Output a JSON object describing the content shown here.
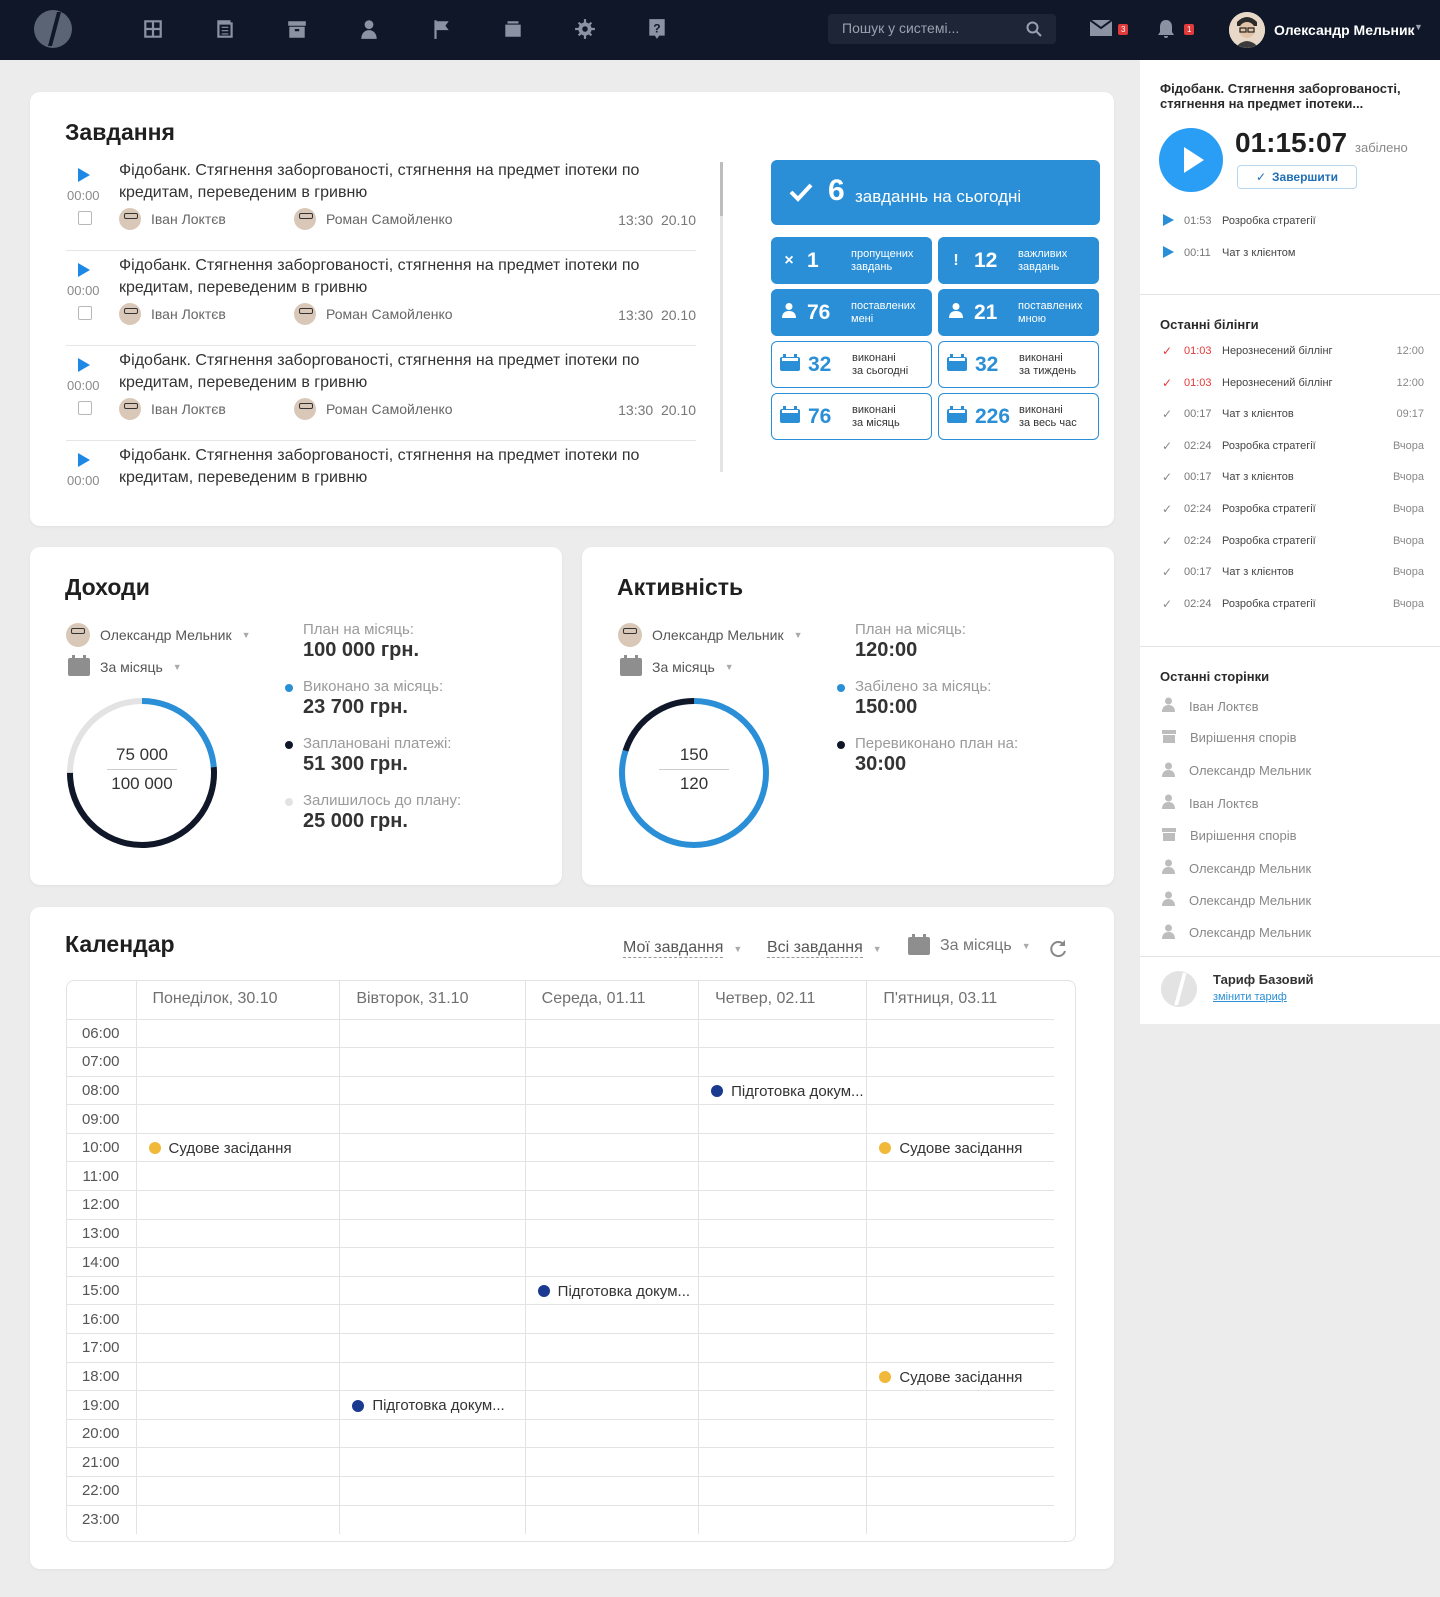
{
  "header": {
    "search_placeholder": "Пошук у системі...",
    "mail_count": "3",
    "notif_count": "1",
    "user_name": "Олександр Мельник",
    "nav_icons": [
      "dashboard-icon",
      "documents-icon",
      "archive-icon",
      "user-icon",
      "flag-icon",
      "wallet-icon",
      "settings-icon",
      "help-icon"
    ]
  },
  "tasks": {
    "title": "Завдання",
    "items": [
      {
        "time": "00:00",
        "title": "Фідобанк. Стягнення заборгованості, стягнення на предмет іпотеки по кредитам, переведеним в гривню",
        "author": "Іван Локтєв",
        "assignee": "Роман Самойленко",
        "hour": "13:30",
        "date": "20.10"
      },
      {
        "time": "00:00",
        "title": "Фідобанк. Стягнення заборгованості, стягнення на предмет іпотеки по кредитам, переведеним в гривню",
        "author": "Іван Локтєв",
        "assignee": "Роман Самойленко",
        "hour": "13:30",
        "date": "20.10"
      },
      {
        "time": "00:00",
        "title": "Фідобанк. Стягнення заборгованості, стягнення на предмет іпотеки по кредитам, переведеним в гривню",
        "author": "Іван Локтєв",
        "assignee": "Роман Самойленко",
        "hour": "13:30",
        "date": "20.10"
      },
      {
        "time": "00:00",
        "title": "Фідобанк. Стягнення заборгованості, стягнення на предмет іпотеки по кредитам, переведеним в гривню"
      }
    ],
    "today_count": "6",
    "today_label": "завданнь на сьогодні",
    "stats": [
      {
        "icon": "×",
        "num": "1",
        "l1": "пропущених",
        "l2": "завдань",
        "style": "filled"
      },
      {
        "icon": "!",
        "num": "12",
        "l1": "важливих",
        "l2": "завдань",
        "style": "filled"
      },
      {
        "icon": "user",
        "num": "76",
        "l1": "поставлених",
        "l2": "мені",
        "style": "filled"
      },
      {
        "icon": "user",
        "num": "21",
        "l1": "поставлених",
        "l2": "мною",
        "style": "filled"
      },
      {
        "icon": "cal",
        "num": "32",
        "l1": "виконані",
        "l2": "за сьогодні",
        "style": "outline"
      },
      {
        "icon": "cal",
        "num": "32",
        "l1": "виконані",
        "l2": "за тиждень",
        "style": "outline"
      },
      {
        "icon": "cal",
        "num": "76",
        "l1": "виконані",
        "l2": "за місяць",
        "style": "outline"
      },
      {
        "icon": "cal",
        "num": "226",
        "l1": "виконані",
        "l2": "за весь час",
        "style": "outline"
      }
    ]
  },
  "income": {
    "title": "Доходи",
    "user": "Олександр Мельник",
    "period": "За місяць",
    "ring_top": "75 000",
    "ring_bottom": "100 000",
    "done_fraction": 0.237,
    "planned_fraction": 0.513,
    "plan_label": "План на місяць:",
    "plan_value": "100 000 грн.",
    "done_label": "Виконано за місяць:",
    "done_value": "23 700 грн.",
    "planned_label": "Заплановані платежі:",
    "planned_value": "51 300 грн.",
    "left_label": "Залишилось до плану:",
    "left_value": "25 000 грн.",
    "colors": {
      "done": "#2a8fd6",
      "planned": "#0f1729",
      "left": "#e3e3e3"
    }
  },
  "activity": {
    "title": "Активність",
    "user": "Олександр Мельник",
    "period": "За місяць",
    "ring_top": "150",
    "ring_bottom": "120",
    "plan_label": "План на місяць:",
    "plan_value": "120:00",
    "billed_label": "Забілено за місяць:",
    "billed_value": "150:00",
    "over_label": "Перевиконано план на:",
    "over_value": "30:00",
    "billed_fraction": 0.8,
    "over_fraction": 0.2
  },
  "calendar": {
    "title": "Календар",
    "filter1": "Мої завдання",
    "filter2": "Всі завдання",
    "period": "За місяць",
    "days": [
      "Понеділок, 30.10",
      "Вівторок, 31.10",
      "Середа, 01.11",
      "Четвер, 02.11",
      "П'ятниця, 03.11"
    ],
    "hours": [
      "06:00",
      "07:00",
      "08:00",
      "09:00",
      "10:00",
      "11:00",
      "12:00",
      "13:00",
      "14:00",
      "15:00",
      "16:00",
      "17:00",
      "18:00",
      "19:00",
      "20:00",
      "21:00",
      "22:00",
      "23:00"
    ],
    "events": [
      {
        "day": 3,
        "hour": 2,
        "label": "Підготовка докум...",
        "color": "#1a3a8f"
      },
      {
        "day": 0,
        "hour": 4,
        "label": "Судове засідання",
        "color": "#f0b93a"
      },
      {
        "day": 4,
        "hour": 4,
        "label": "Судове засідання",
        "color": "#f0b93a"
      },
      {
        "day": 2,
        "hour": 9,
        "label": "Підготовка докум...",
        "color": "#1a3a8f"
      },
      {
        "day": 4,
        "hour": 12,
        "label": "Судове засідання",
        "color": "#f0b93a"
      },
      {
        "day": 1,
        "hour": 13,
        "label": "Підготовка докум...",
        "color": "#1a3a8f"
      }
    ]
  },
  "sidebar": {
    "current_task": "Фідобанк. Стягнення заборгованості, стягнення на предмет іпотеки...",
    "timer": "01:15:07",
    "timer_suffix": "забілено",
    "finish_label": "Завершити",
    "recent_timers": [
      {
        "time": "01:53",
        "label": "Розробка стратегії"
      },
      {
        "time": "00:11",
        "label": "Чат з клієнтом"
      }
    ],
    "billings_title": "Останні білінги",
    "billings": [
      {
        "time": "01:03",
        "label": "Нерознесений біллінг",
        "right": "12:00",
        "alert": true
      },
      {
        "time": "01:03",
        "label": "Нерознесений біллінг",
        "right": "12:00",
        "alert": true
      },
      {
        "time": "00:17",
        "label": "Чат з клієнтов",
        "right": "09:17"
      },
      {
        "time": "02:24",
        "label": "Розробка стратегії",
        "right": "Вчора"
      },
      {
        "time": "00:17",
        "label": "Чат з клієнтов",
        "right": "Вчора"
      },
      {
        "time": "02:24",
        "label": "Розробка стратегії",
        "right": "Вчора"
      },
      {
        "time": "02:24",
        "label": "Розробка стратегії",
        "right": "Вчора"
      },
      {
        "time": "00:17",
        "label": "Чат з клієнтов",
        "right": "Вчора"
      },
      {
        "time": "02:24",
        "label": "Розробка стратегії",
        "right": "Вчора"
      }
    ],
    "pages_title": "Останні сторінки",
    "pages": [
      {
        "icon": "user-icon",
        "label": "Іван Локтєв"
      },
      {
        "icon": "archive-icon",
        "label": "Вирішення спорів"
      },
      {
        "icon": "user-icon",
        "label": "Олександр Мельник"
      },
      {
        "icon": "user-icon",
        "label": "Іван Локтєв"
      },
      {
        "icon": "archive-icon",
        "label": "Вирішення спорів"
      },
      {
        "icon": "user-icon",
        "label": "Олександр Мельник"
      },
      {
        "icon": "user-icon",
        "label": "Олександр Мельник"
      },
      {
        "icon": "user-icon",
        "label": "Олександр Мельник"
      }
    ],
    "tariff_label": "Тариф Базовий",
    "tariff_link": "змінити тариф"
  }
}
